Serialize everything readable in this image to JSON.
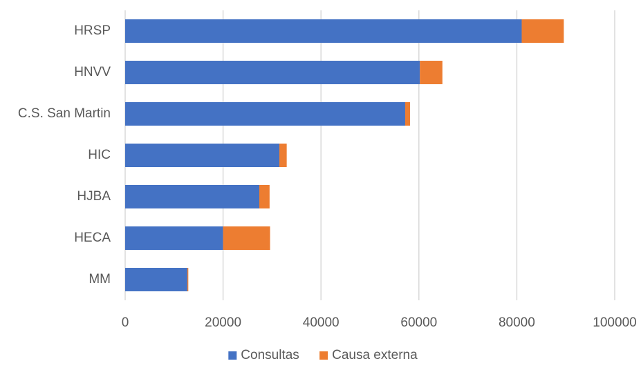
{
  "chart_data": {
    "type": "bar",
    "orientation": "horizontal",
    "stacked": true,
    "categories": [
      "HRSP",
      "HNVV",
      "C.S. San Martin",
      "HIC",
      "HJBA",
      "HECA",
      "MM"
    ],
    "series": [
      {
        "name": "Consultas",
        "color": "#4472C4",
        "values": [
          81000,
          60200,
          57200,
          31500,
          27400,
          20000,
          12700
        ]
      },
      {
        "name": "Causa externa",
        "color": "#ED7D31",
        "values": [
          8600,
          4600,
          1000,
          1500,
          2100,
          9600,
          200
        ]
      }
    ],
    "xlim": [
      0,
      100000
    ],
    "xticks": [
      0,
      20000,
      40000,
      60000,
      80000,
      100000
    ],
    "xtick_labels": [
      "0",
      "20000",
      "40000",
      "60000",
      "80000",
      "100000"
    ],
    "grid": "vertical",
    "gridline_color": "#D9D9D9",
    "legend_position": "bottom"
  }
}
